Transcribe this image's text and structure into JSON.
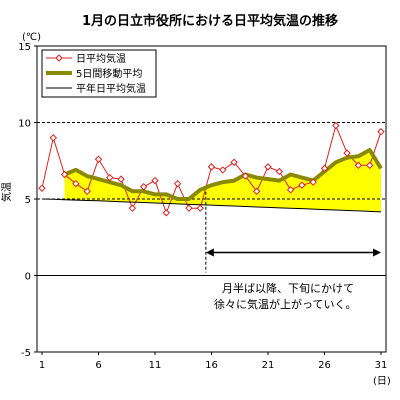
{
  "chart_data": {
    "type": "line",
    "title": "1月の日立市役所における日平均気温の推移",
    "yunit": "(℃)",
    "ylabel": "気温",
    "xunit": "(日)",
    "ylim": [
      -5,
      15
    ],
    "yticks": [
      15,
      10,
      5,
      0,
      -5
    ],
    "xlim": [
      1,
      31
    ],
    "xticks": [
      1,
      6,
      11,
      16,
      21,
      26,
      31
    ],
    "days": [
      1,
      2,
      3,
      4,
      5,
      6,
      7,
      8,
      9,
      10,
      11,
      12,
      13,
      14,
      15,
      16,
      17,
      18,
      19,
      20,
      21,
      22,
      23,
      24,
      25,
      26,
      27,
      28,
      29,
      30,
      31
    ],
    "series": [
      {
        "name": "日平均気温",
        "color": "#e02020",
        "marker": "diamond",
        "values": [
          5.7,
          9.0,
          6.6,
          6.0,
          5.5,
          7.6,
          6.4,
          6.3,
          4.4,
          5.8,
          6.2,
          4.1,
          6.0,
          4.4,
          4.4,
          7.1,
          6.9,
          7.4,
          6.5,
          5.5,
          7.1,
          6.8,
          5.6,
          5.9,
          6.1,
          7.0,
          9.8,
          8.0,
          7.2,
          7.2,
          9.4
        ]
      },
      {
        "name": "5日間移動平均",
        "color": "#8a8a00",
        "values": [
          null,
          null,
          6.6,
          6.9,
          6.5,
          6.3,
          6.1,
          5.9,
          5.5,
          5.5,
          5.3,
          5.3,
          5.0,
          5.0,
          5.6,
          5.9,
          6.1,
          6.2,
          6.6,
          6.4,
          6.3,
          6.2,
          6.6,
          6.4,
          6.2,
          6.8,
          7.4,
          7.7,
          7.8,
          8.2,
          7.0
        ]
      },
      {
        "name": "平年日平均気温",
        "color": "#000000",
        "values": [
          5.0,
          4.98,
          4.95,
          4.93,
          4.9,
          4.88,
          4.85,
          4.82,
          4.8,
          4.77,
          4.74,
          4.71,
          4.68,
          4.65,
          4.62,
          4.6,
          4.57,
          4.54,
          4.51,
          4.48,
          4.45,
          4.42,
          4.4,
          4.37,
          4.34,
          4.31,
          4.28,
          4.25,
          4.22,
          4.19,
          4.16
        ]
      }
    ],
    "fill_between": {
      "upper": "5日間移動平均",
      "lower": "平年日平均気温",
      "color": "#ffff00"
    },
    "reference_lines": [
      10,
      5
    ],
    "marker_day": 15.5,
    "annotation": {
      "lines": [
        "月半ば以降、下旬にかけて",
        "徐々に気温が上がっていく。"
      ],
      "from_day": 15.5,
      "to_day": 31,
      "arrow_at": 1.5
    },
    "legend_position": "top-left",
    "grid": false
  }
}
